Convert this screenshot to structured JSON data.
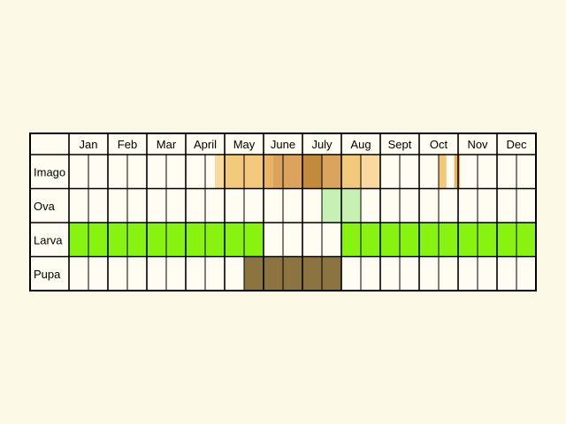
{
  "months": [
    "Jan",
    "Feb",
    "Mar",
    "April",
    "May",
    "June",
    "July",
    "Aug",
    "Sept",
    "Oct",
    "Nov",
    "Dec"
  ],
  "stages": [
    {
      "label": "Imago",
      "segments": [
        {
          "from": 7.5,
          "to": 8.0,
          "color": "#f9d9a0"
        },
        {
          "from": 8.0,
          "to": 10.0,
          "color": "#f2c97c"
        },
        {
          "from": 10.0,
          "to": 10.5,
          "color": "#e8b467"
        },
        {
          "from": 10.5,
          "to": 12.0,
          "color": "#dba45e"
        },
        {
          "from": 12.0,
          "to": 13.0,
          "color": "#c28a3c"
        },
        {
          "from": 13.0,
          "to": 14.0,
          "color": "#dba45e"
        },
        {
          "from": 14.0,
          "to": 15.0,
          "color": "#f2c97c"
        },
        {
          "from": 15.0,
          "to": 16.0,
          "color": "#f9d9a0"
        },
        {
          "from": 19.0,
          "to": 19.4,
          "color": "#f2c97c"
        },
        {
          "from": 19.8,
          "to": 20.1,
          "color": "#e8b467"
        }
      ]
    },
    {
      "label": "Ova",
      "segments": [
        {
          "from": 13.0,
          "to": 14.0,
          "color": "#c6f0b4"
        },
        {
          "from": 14.0,
          "to": 15.0,
          "color": "#c6f0b4"
        }
      ]
    },
    {
      "label": "Larva",
      "segments": [
        {
          "from": 0.0,
          "to": 10.0,
          "color": "#88f211"
        },
        {
          "from": 14.0,
          "to": 24.0,
          "color": "#88f211"
        }
      ]
    },
    {
      "label": "Pupa",
      "segments": [
        {
          "from": 9.0,
          "to": 14.0,
          "color": "#8b7440"
        }
      ]
    }
  ]
}
